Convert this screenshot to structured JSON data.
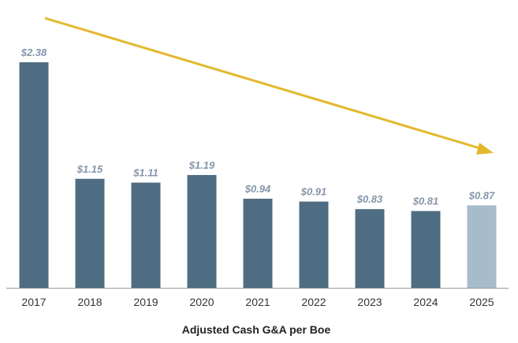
{
  "chart_data": {
    "type": "bar",
    "title": "Adjusted Cash G&A per Boe",
    "xlabel": "Adjusted Cash G&A per Boe",
    "ylabel": "",
    "categories": [
      "2017",
      "2018",
      "2019",
      "2020",
      "2021",
      "2022",
      "2023",
      "2024",
      "2025"
    ],
    "values": [
      2.38,
      1.15,
      1.11,
      1.19,
      0.94,
      0.91,
      0.83,
      0.81,
      0.87
    ],
    "data_labels": [
      "$2.38",
      "$1.15",
      "$1.11",
      "$1.19",
      "$0.94",
      "$0.91",
      "$0.83",
      "$0.81",
      "$0.87"
    ],
    "highlight": [
      false,
      false,
      false,
      false,
      false,
      false,
      false,
      false,
      true
    ],
    "ylim": [
      0,
      2.4
    ],
    "grid": false,
    "annotations": [
      {
        "type": "trend-arrow",
        "direction": "down",
        "from_category": "2017",
        "to_category": "2025"
      }
    ],
    "colors": {
      "bar": "#4f6d82",
      "highlight_bar": "#a7bccb",
      "arrow": "#e3b82c",
      "label": "#8595ab",
      "axis": "#999999"
    }
  }
}
